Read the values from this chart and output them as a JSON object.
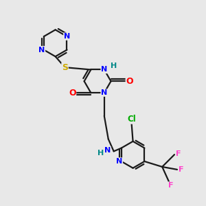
{
  "bg_color": "#e8e8e8",
  "bond_color": "#1a1a1a",
  "bond_width": 1.6,
  "atom_colors": {
    "N": "#0000ff",
    "O": "#ff0000",
    "S": "#ccaa00",
    "Cl": "#00aa00",
    "F": "#ff44cc",
    "C": "#1a1a1a",
    "H": "#008888"
  },
  "font_size": 8.5,
  "title": ""
}
